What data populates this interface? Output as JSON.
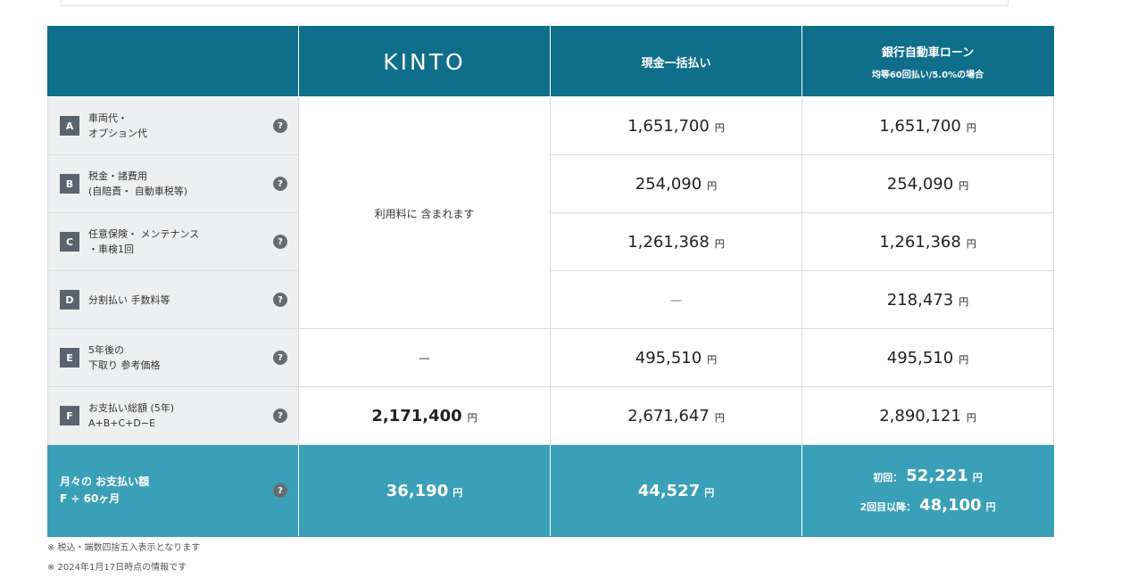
{
  "header": {
    "kinto_logo": "KINTO",
    "cash_label": "現金一括払い",
    "loan_label": "銀行自動車ローン",
    "loan_sub": "均等60回払い/5.0%の場合"
  },
  "help_glyph": "?",
  "yen": "円",
  "dash": "－",
  "included_text": "利用料に 含まれます",
  "rows": [
    {
      "badge": "A",
      "label": "車両代・\nオプション代",
      "cash": "1,651,700",
      "loan": "1,651,700"
    },
    {
      "badge": "B",
      "label": "税金・諸費用\n(自賠責・ 自動車税等)",
      "cash": "254,090",
      "loan": "254,090"
    },
    {
      "badge": "C",
      "label": "任意保険・ メンテナンス\n・車検1回",
      "cash": "1,261,368",
      "loan": "1,261,368"
    },
    {
      "badge": "D",
      "label": "分割払い 手数料等",
      "cash": "－",
      "loan": "218,473"
    },
    {
      "badge": "E",
      "label": "5年後の\n下取り 参考価格",
      "kinto": "－",
      "cash": "495,510",
      "loan": "495,510"
    },
    {
      "badge": "F",
      "label": "お支払い総額 (5年)\nA+B+C+D−E",
      "kinto": "2,171,400",
      "cash": "2,671,647",
      "loan": "2,890,121"
    }
  ],
  "monthly": {
    "label": "月々の お支払い額\nF ÷ 60ヶ月",
    "kinto": "36,190",
    "cash": "44,527",
    "loan_first_label": "初回：",
    "loan_first": "52,221",
    "loan_after_label": "2回目以降：",
    "loan_after": "48,100"
  },
  "notes": [
    "※ 税込・端数四捨五入表示となります",
    "※ 2024年1月17日時点の情報です"
  ],
  "colors": {
    "header_bg": "#0f6f8a",
    "monthly_bg": "#3aa0b7",
    "label_bg": "#eeeff0",
    "badge_bg": "#5a6470"
  }
}
